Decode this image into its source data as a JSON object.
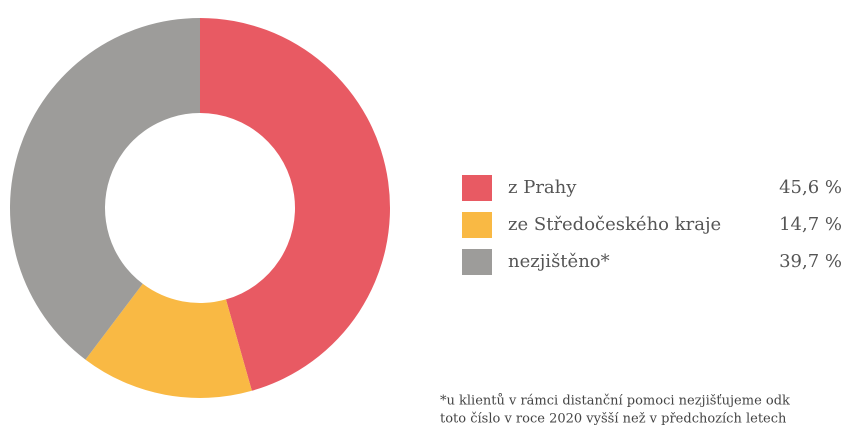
{
  "chart_data": {
    "type": "donut",
    "categories": [
      "z Prahy",
      "ze Středočeského kraje",
      "nezjištěno*"
    ],
    "values": [
      45.6,
      14.7,
      39.7
    ],
    "value_labels": [
      "45,6 %",
      "14,7 %",
      "39,7 %"
    ],
    "colors": [
      "#e85a63",
      "#f9b944",
      "#9d9c9a"
    ],
    "footnote": [
      "*u klientů v rámci distanční pomoci nezjišťujeme odk",
      "toto číslo v roce 2020 vyšší než v předchozích letech"
    ]
  }
}
